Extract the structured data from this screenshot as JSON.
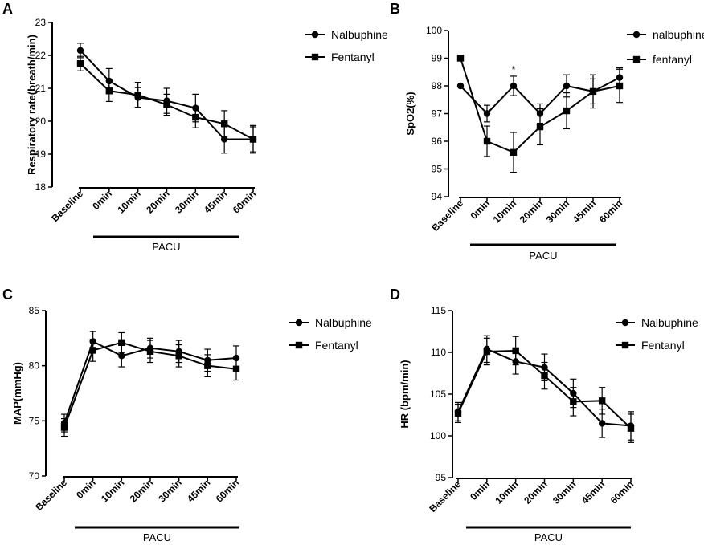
{
  "chart_data": [
    {
      "panel": "A",
      "type": "line",
      "categories": [
        "Baseline",
        "0min",
        "10min",
        "20min",
        "30min",
        "45min",
        "60min"
      ],
      "group_label": "PACU",
      "ylabel": "Respiratory rate(breath/min)",
      "ylim": [
        18,
        23
      ],
      "yticks": [
        18,
        19,
        20,
        21,
        22,
        23
      ],
      "series": [
        {
          "name": "Nalbuphine",
          "marker": "circle",
          "values": [
            22.15,
            21.22,
            20.72,
            20.62,
            20.4,
            19.45,
            19.45
          ],
          "errors": [
            0.22,
            0.38,
            0.3,
            0.38,
            0.42,
            0.42,
            0.42
          ]
        },
        {
          "name": "Fentanyl",
          "marker": "square",
          "values": [
            21.75,
            20.92,
            20.8,
            20.5,
            20.12,
            19.92,
            19.45
          ],
          "errors": [
            0.22,
            0.32,
            0.38,
            0.32,
            0.32,
            0.4,
            0.38
          ]
        }
      ],
      "annotations": []
    },
    {
      "panel": "B",
      "type": "line",
      "categories": [
        "Baseline",
        "0min",
        "10min",
        "20min",
        "30min",
        "45min",
        "60min"
      ],
      "group_label": "PACU",
      "ylabel": "SpO2(%)",
      "ylim": [
        94,
        100
      ],
      "yticks": [
        94,
        95,
        96,
        97,
        98,
        99,
        100
      ],
      "series": [
        {
          "name": "nalbuphine",
          "marker": "circle",
          "values": [
            98.0,
            97.0,
            98.0,
            97.0,
            98.0,
            97.8,
            98.3
          ],
          "errors": [
            0,
            0.3,
            0.35,
            0.35,
            0.4,
            0.45,
            0.35
          ]
        },
        {
          "name": "fentanyl",
          "marker": "square",
          "values": [
            99.0,
            96.0,
            95.6,
            96.52,
            97.1,
            97.8,
            98.0
          ],
          "errors": [
            0,
            0.55,
            0.72,
            0.65,
            0.65,
            0.6,
            0.6
          ]
        }
      ],
      "annotations": [
        {
          "category": "10min",
          "text": "*"
        }
      ]
    },
    {
      "panel": "C",
      "type": "line",
      "categories": [
        "Baseline",
        "0min",
        "10min",
        "20min",
        "30min",
        "45min",
        "60min"
      ],
      "group_label": "PACU",
      "ylabel": "MAP(mmHg)",
      "ylim": [
        70,
        85
      ],
      "yticks": [
        70,
        75,
        80,
        85
      ],
      "series": [
        {
          "name": "Nalbuphine",
          "marker": "circle",
          "values": [
            74.8,
            82.2,
            80.9,
            81.6,
            81.3,
            80.5,
            80.7
          ],
          "errors": [
            0.8,
            0.9,
            1.0,
            0.9,
            1.0,
            1.0,
            1.1
          ]
        },
        {
          "name": "Fentanyl",
          "marker": "square",
          "values": [
            74.4,
            81.4,
            82.1,
            81.3,
            80.9,
            80.0,
            79.7
          ],
          "errors": [
            0.8,
            1.0,
            0.9,
            1.0,
            1.0,
            1.0,
            1.0
          ]
        }
      ],
      "annotations": []
    },
    {
      "panel": "D",
      "type": "line",
      "categories": [
        "Baseline",
        "0min",
        "10min",
        "20min",
        "30min",
        "45min",
        "60min"
      ],
      "group_label": "PACU",
      "ylabel": "HR (bpm/min)",
      "ylim": [
        95,
        115
      ],
      "yticks": [
        95,
        100,
        105,
        110,
        115
      ],
      "series": [
        {
          "name": "Nalbuphine",
          "marker": "circle",
          "values": [
            102.9,
            110.4,
            108.9,
            108.2,
            105.1,
            101.5,
            101.2
          ],
          "errors": [
            1.1,
            1.6,
            1.5,
            1.6,
            1.7,
            1.7,
            1.7
          ]
        },
        {
          "name": "Fentanyl",
          "marker": "square",
          "values": [
            102.7,
            110.1,
            110.2,
            107.2,
            104.1,
            104.2,
            100.9
          ],
          "errors": [
            1.1,
            1.6,
            1.7,
            1.6,
            1.7,
            1.6,
            1.7
          ]
        }
      ],
      "annotations": []
    }
  ]
}
